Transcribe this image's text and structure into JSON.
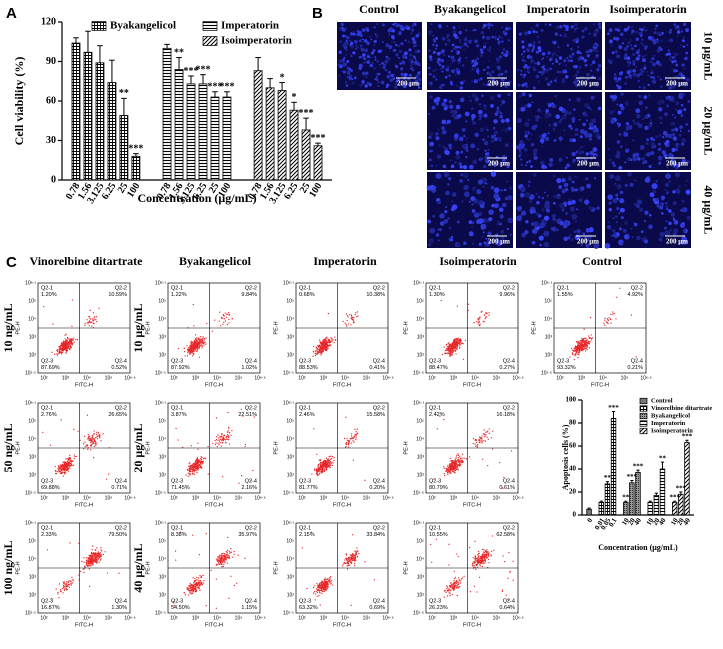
{
  "panel_labels": [
    "A",
    "B",
    "C"
  ],
  "chart_data": [
    {
      "type": "grouped_bar",
      "y_label": "Cell viability (%)",
      "x_label": "Concentration (μg/mL)",
      "ylim": [
        0,
        120
      ],
      "yticks": [
        0,
        30,
        60,
        90,
        120
      ],
      "series": [
        {
          "name": "Byakangelicol",
          "pattern": "crosshatch",
          "categories": [
            "0.78",
            "1.56",
            "3.125",
            "6.25",
            "25",
            "100"
          ],
          "values": [
            104,
            97,
            89,
            74,
            49,
            18
          ],
          "errors": [
            4,
            16,
            13,
            17,
            13,
            2
          ],
          "significance": [
            null,
            null,
            null,
            null,
            "**",
            "***"
          ]
        },
        {
          "name": "Imperatorin",
          "pattern": "horizontal",
          "categories": [
            "0.78",
            "1.56",
            "3.125",
            "6.25",
            "25",
            "100"
          ],
          "values": [
            100,
            84,
            73,
            73,
            63,
            63
          ],
          "errors": [
            3,
            9,
            6,
            7,
            4,
            4
          ],
          "significance": [
            null,
            "**",
            "***",
            "***",
            "***",
            "***"
          ]
        },
        {
          "name": "Isoimperatorin",
          "pattern": "diagonal",
          "categories": [
            "0.78",
            "1.56",
            "3.125",
            "6.25",
            "25",
            "100"
          ],
          "values": [
            83,
            70,
            68,
            53,
            38,
            26
          ],
          "errors": [
            10,
            7,
            6,
            6,
            9,
            2
          ],
          "significance": [
            null,
            null,
            "*",
            "*",
            "***",
            "***"
          ]
        }
      ]
    },
    {
      "type": "grouped_bar",
      "y_label": "Apoptosis cells (%)",
      "x_label": "Concentration (μg/mL)",
      "ylim": [
        0,
        100
      ],
      "yticks": [
        0,
        20,
        40,
        60,
        80,
        100
      ],
      "series": [
        {
          "name": "Control",
          "pattern": "gray",
          "categories": [
            "0"
          ],
          "values": [
            5
          ],
          "errors": [
            1
          ],
          "significance": [
            null
          ]
        },
        {
          "name": "Vinorelbine ditartrate",
          "pattern": "crosshatch",
          "categories": [
            "0.01",
            "0.05",
            "0.1"
          ],
          "values": [
            11,
            27,
            84
          ],
          "errors": [
            1,
            2,
            6
          ],
          "significance": [
            null,
            "**",
            "***"
          ]
        },
        {
          "name": "Byakangelicol",
          "pattern": "dots",
          "categories": [
            "10",
            "20",
            "40"
          ],
          "values": [
            11,
            28,
            37
          ],
          "errors": [
            1,
            2,
            2
          ],
          "significance": [
            "**",
            "***",
            "***"
          ]
        },
        {
          "name": "Imperatorin",
          "pattern": "horizontal",
          "categories": [
            "10",
            "20",
            "40"
          ],
          "values": [
            11,
            17,
            40
          ],
          "errors": [
            1,
            2,
            6
          ],
          "significance": [
            null,
            null,
            "**"
          ]
        },
        {
          "name": "Isoimperatorin",
          "pattern": "diagonal",
          "categories": [
            "10",
            "20",
            "40"
          ],
          "values": [
            11,
            18,
            63
          ],
          "errors": [
            1,
            2,
            2
          ],
          "significance": [
            "***",
            "***",
            "***"
          ]
        }
      ]
    }
  ],
  "micrographs": {
    "columns": [
      "Control",
      "Byakangelicol",
      "Imperatorin",
      "Isoimperatorin"
    ],
    "rows": [
      "10 μg/mL",
      "20 μg/mL",
      "40 μg/mL"
    ],
    "scale_bar": "200 μm"
  },
  "flow": {
    "quadrant_names": [
      "Q2-1",
      "Q2-2",
      "Q2-3",
      "Q2-4"
    ],
    "x_axis_label": "FITC-H",
    "y_axis_label": "PE-H",
    "x_tick_labels": [
      "10²",
      "10³",
      "10⁴",
      "10⁵",
      "10⁶·⁶"
    ],
    "y_tick_labels": [
      "10¹·⁵",
      "10²",
      "10³",
      "10⁴",
      "10⁵",
      "10⁶·¹"
    ],
    "row_labels_left": [
      "10 ng/mL",
      "50 ng/mL",
      "100 ng/mL"
    ],
    "row_labels_middle": [
      "10 μg/mL",
      "20 μg/mL",
      "40 μg/mL"
    ],
    "columns": [
      {
        "title": "Vinorelbine ditartrate",
        "plots": [
          [
            "1.20%",
            "10.59%",
            "87.69%",
            "0.52%"
          ],
          [
            "2.76%",
            "26.65%",
            "69.88%",
            "0.71%"
          ],
          [
            "2.33%",
            "79.50%",
            "16.87%",
            "1.30%"
          ]
        ]
      },
      {
        "title": "Byakangelicol",
        "plots": [
          [
            "1.22%",
            "9.84%",
            "87.92%",
            "1.02%"
          ],
          [
            "3.87%",
            "22.51%",
            "71.45%",
            "2.16%"
          ],
          [
            "8.38%",
            "35.97%",
            "54.50%",
            "1.15%"
          ]
        ]
      },
      {
        "title": "Imperatorin",
        "plots": [
          [
            "0.68%",
            "10.38%",
            "88.53%",
            "0.41%"
          ],
          [
            "2.46%",
            "15.58%",
            "81.77%",
            "0.20%"
          ],
          [
            "2.15%",
            "33.84%",
            "63.32%",
            "0.69%"
          ]
        ]
      },
      {
        "title": "Isoimperatorin",
        "plots": [
          [
            "1.30%",
            "9.96%",
            "88.47%",
            "0.27%"
          ],
          [
            "2.42%",
            "16.18%",
            "80.79%",
            "0.61%"
          ],
          [
            "10.55%",
            "62.58%",
            "26.23%",
            "0.64%"
          ]
        ]
      },
      {
        "title": "Control",
        "plots": [
          [
            "1.55%",
            "4.92%",
            "93.32%",
            "0.21%"
          ]
        ]
      }
    ]
  }
}
